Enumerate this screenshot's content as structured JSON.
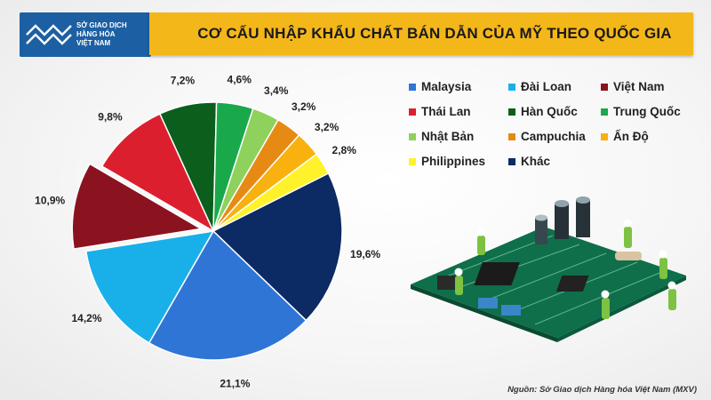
{
  "logo": {
    "line1": "SỞ GIAO DỊCH",
    "line2": "HÀNG HÓA",
    "line3": "VIỆT NAM"
  },
  "source": "Nguồn: Sở Giao dịch Hàng hóa Việt Nam (MXV)",
  "chart_data": {
    "type": "pie",
    "title": "CƠ CẤU NHẬP KHẨU CHẤT BÁN DẪN CỦA MỸ THEO QUỐC GIA",
    "legend_position": "right",
    "slices": [
      {
        "label": "Việt Nam",
        "value": 10.9,
        "text": "10,9%",
        "color": "#8b1320"
      },
      {
        "label": "Thái Lan",
        "value": 9.8,
        "text": "9,8%",
        "color": "#dc1f2e"
      },
      {
        "label": "Hàn Quốc",
        "value": 7.2,
        "text": "7,2%",
        "color": "#0b5e1c"
      },
      {
        "label": "Trung Quốc",
        "value": 4.6,
        "text": "4,6%",
        "color": "#1aa94a"
      },
      {
        "label": "Nhật Bản",
        "value": 3.4,
        "text": "3,4%",
        "color": "#8ed15c"
      },
      {
        "label": "Campuchia",
        "value": 3.2,
        "text": "3,2%",
        "color": "#e68a14"
      },
      {
        "label": "Ấn Độ",
        "value": 3.2,
        "text": "3,2%",
        "color": "#f9b10f"
      },
      {
        "label": "Philippines",
        "value": 2.8,
        "text": "2,8%",
        "color": "#fff22a"
      },
      {
        "label": "Khác",
        "value": 19.6,
        "text": "19,6%",
        "color": "#0c2a63"
      },
      {
        "label": "Malaysia",
        "value": 21.1,
        "text": "21,1%",
        "color": "#2f75d6"
      },
      {
        "label": "Đài Loan",
        "value": 14.2,
        "text": "14,2%",
        "color": "#19b0ea"
      }
    ],
    "legend": [
      {
        "label": "Malaysia",
        "color": "#2f75d6"
      },
      {
        "label": "Đài Loan",
        "color": "#19b0ea"
      },
      {
        "label": "Việt Nam",
        "color": "#8b1320"
      },
      {
        "label": "Thái Lan",
        "color": "#dc1f2e"
      },
      {
        "label": "Hàn Quốc",
        "color": "#0b5e1c"
      },
      {
        "label": "Trung Quốc",
        "color": "#1aa94a"
      },
      {
        "label": "Nhật Bản",
        "color": "#8ed15c"
      },
      {
        "label": "Campuchia",
        "color": "#e68a14"
      },
      {
        "label": "Ấn Độ",
        "color": "#f9b10f"
      },
      {
        "label": "Philippines",
        "color": "#fff22a"
      },
      {
        "label": "Khác",
        "color": "#0c2a63"
      }
    ]
  }
}
